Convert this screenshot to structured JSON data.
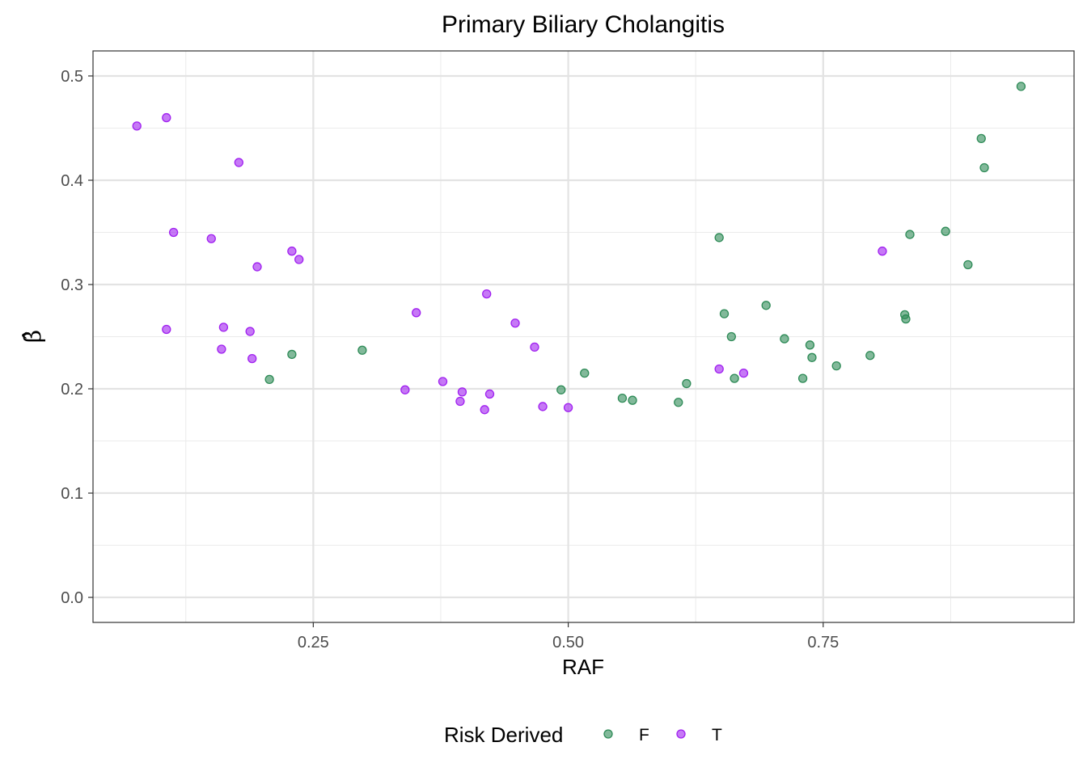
{
  "chart_data": {
    "type": "scatter",
    "title": "Primary Biliary Cholangitis",
    "xlabel": "RAF",
    "ylabel": "β̂",
    "xlim": [
      0.034,
      0.996
    ],
    "ylim": [
      -0.024,
      0.524
    ],
    "x_ticks": [
      0.25,
      0.5,
      0.75
    ],
    "x_tick_labels": [
      "0.25",
      "0.50",
      "0.75"
    ],
    "x_minor_ticks": [
      0.125,
      0.375,
      0.625,
      0.875
    ],
    "y_ticks": [
      0.0,
      0.1,
      0.2,
      0.3,
      0.4,
      0.5
    ],
    "y_tick_labels": [
      "0.0",
      "0.1",
      "0.2",
      "0.3",
      "0.4",
      "0.5"
    ],
    "y_minor_ticks": [
      0.05,
      0.15,
      0.25,
      0.35,
      0.45
    ],
    "grid": true,
    "legend": {
      "title": "Risk Derived",
      "position": "bottom",
      "entries": [
        {
          "label": "F",
          "color": "#2e8b57"
        },
        {
          "label": "T",
          "color": "#a020f0"
        }
      ]
    },
    "series": [
      {
        "name": "F",
        "color": "#2e8b57",
        "points": [
          [
            0.207,
            0.209
          ],
          [
            0.229,
            0.233
          ],
          [
            0.298,
            0.237
          ],
          [
            0.493,
            0.199
          ],
          [
            0.516,
            0.215
          ],
          [
            0.553,
            0.191
          ],
          [
            0.563,
            0.189
          ],
          [
            0.608,
            0.187
          ],
          [
            0.616,
            0.205
          ],
          [
            0.648,
            0.345
          ],
          [
            0.653,
            0.272
          ],
          [
            0.66,
            0.25
          ],
          [
            0.663,
            0.21
          ],
          [
            0.694,
            0.28
          ],
          [
            0.712,
            0.248
          ],
          [
            0.73,
            0.21
          ],
          [
            0.737,
            0.242
          ],
          [
            0.739,
            0.23
          ],
          [
            0.763,
            0.222
          ],
          [
            0.796,
            0.232
          ],
          [
            0.83,
            0.271
          ],
          [
            0.831,
            0.267
          ],
          [
            0.835,
            0.348
          ],
          [
            0.87,
            0.351
          ],
          [
            0.892,
            0.319
          ],
          [
            0.905,
            0.44
          ],
          [
            0.908,
            0.412
          ],
          [
            0.944,
            0.49
          ]
        ]
      },
      {
        "name": "T",
        "color": "#a020f0",
        "points": [
          [
            0.077,
            0.452
          ],
          [
            0.106,
            0.46
          ],
          [
            0.106,
            0.257
          ],
          [
            0.113,
            0.35
          ],
          [
            0.15,
            0.344
          ],
          [
            0.16,
            0.238
          ],
          [
            0.162,
            0.259
          ],
          [
            0.177,
            0.417
          ],
          [
            0.188,
            0.255
          ],
          [
            0.19,
            0.229
          ],
          [
            0.195,
            0.317
          ],
          [
            0.229,
            0.332
          ],
          [
            0.236,
            0.324
          ],
          [
            0.34,
            0.199
          ],
          [
            0.351,
            0.273
          ],
          [
            0.377,
            0.207
          ],
          [
            0.394,
            0.188
          ],
          [
            0.396,
            0.197
          ],
          [
            0.418,
            0.18
          ],
          [
            0.42,
            0.291
          ],
          [
            0.423,
            0.195
          ],
          [
            0.448,
            0.263
          ],
          [
            0.467,
            0.24
          ],
          [
            0.475,
            0.183
          ],
          [
            0.5,
            0.182
          ],
          [
            0.648,
            0.219
          ],
          [
            0.672,
            0.215
          ],
          [
            0.808,
            0.332
          ]
        ]
      }
    ]
  }
}
